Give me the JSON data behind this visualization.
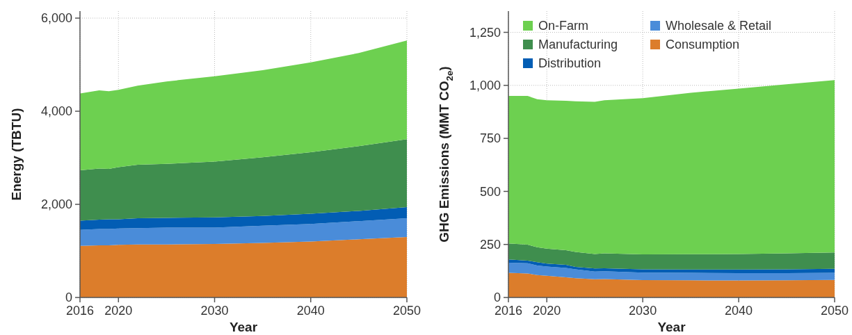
{
  "chart_data": [
    {
      "type": "area",
      "stacked": true,
      "xlabel": "Year",
      "ylabel": "Energy (TBTU)",
      "x": [
        2016,
        2018,
        2019,
        2020,
        2022,
        2025,
        2030,
        2035,
        2040,
        2045,
        2050
      ],
      "xlim": [
        2016,
        2050
      ],
      "xticks": [
        2016,
        2020,
        2030,
        2040,
        2050
      ],
      "ylim": [
        0,
        6150
      ],
      "yticks": [
        0,
        {
          "value": 2000,
          "label": "2,000"
        },
        {
          "value": 4000,
          "label": "4,000"
        },
        {
          "value": 6000,
          "label": "6,000"
        }
      ],
      "grid": true,
      "legend": false,
      "series": [
        {
          "color": "#dc7d2b",
          "values": [
            1110,
            1120,
            1120,
            1130,
            1140,
            1140,
            1150,
            1170,
            1200,
            1250,
            1300
          ]
        },
        {
          "color": "#4a8cd9",
          "values": [
            340,
            350,
            350,
            350,
            350,
            360,
            350,
            370,
            380,
            390,
            400
          ]
        },
        {
          "color": "#025db4",
          "values": [
            200,
            200,
            210,
            200,
            210,
            210,
            220,
            210,
            220,
            220,
            240
          ]
        },
        {
          "color": "#3f8e4e",
          "values": [
            1080,
            1100,
            1080,
            1120,
            1150,
            1160,
            1200,
            1260,
            1320,
            1390,
            1460
          ]
        },
        {
          "color": "#6dd050",
          "values": [
            1650,
            1680,
            1670,
            1660,
            1700,
            1770,
            1830,
            1870,
            1930,
            2000,
            2120
          ]
        }
      ]
    },
    {
      "type": "area",
      "stacked": true,
      "xlabel": "Year",
      "ylabel": "GHG Emissions (MMT CO$_{2e}$)",
      "x": [
        2016,
        2018,
        2019,
        2020,
        2022,
        2023,
        2025,
        2026,
        2030,
        2035,
        2040,
        2045,
        2050
      ],
      "xlim": [
        2016,
        2050
      ],
      "xticks": [
        2016,
        2020,
        2030,
        2040,
        2050
      ],
      "ylim": [
        0,
        1350
      ],
      "yticks": [
        0,
        250,
        500,
        750,
        {
          "value": 1000,
          "label": "1,000"
        },
        {
          "value": 1250,
          "label": "1,250"
        }
      ],
      "grid": true,
      "legend": "top left",
      "series": [
        {
          "name": "Consumption",
          "color": "#dc7d2b",
          "values": [
            116,
            113,
            106,
            102,
            95,
            91,
            86,
            87,
            82,
            81,
            80,
            81,
            83
          ]
        },
        {
          "name": "Wholesale & Retail",
          "color": "#4a8cd9",
          "values": [
            48,
            48,
            45,
            44,
            44,
            42,
            36,
            37,
            35,
            35,
            35,
            34,
            33
          ]
        },
        {
          "name": "Distribution",
          "color": "#025db4",
          "values": [
            15,
            13,
            15,
            14,
            15,
            11,
            15,
            14,
            16,
            16,
            17,
            18,
            19
          ]
        },
        {
          "name": "Manufacturing",
          "color": "#3f8e4e",
          "values": [
            76,
            75,
            71,
            70,
            69,
            71,
            68,
            70,
            70,
            72,
            73,
            75,
            77
          ]
        },
        {
          "name": "On-Farm",
          "color": "#6dd050",
          "values": [
            695,
            701,
            698,
            700,
            704,
            710,
            717,
            722,
            737,
            761,
            780,
            797,
            813
          ]
        }
      ]
    }
  ]
}
